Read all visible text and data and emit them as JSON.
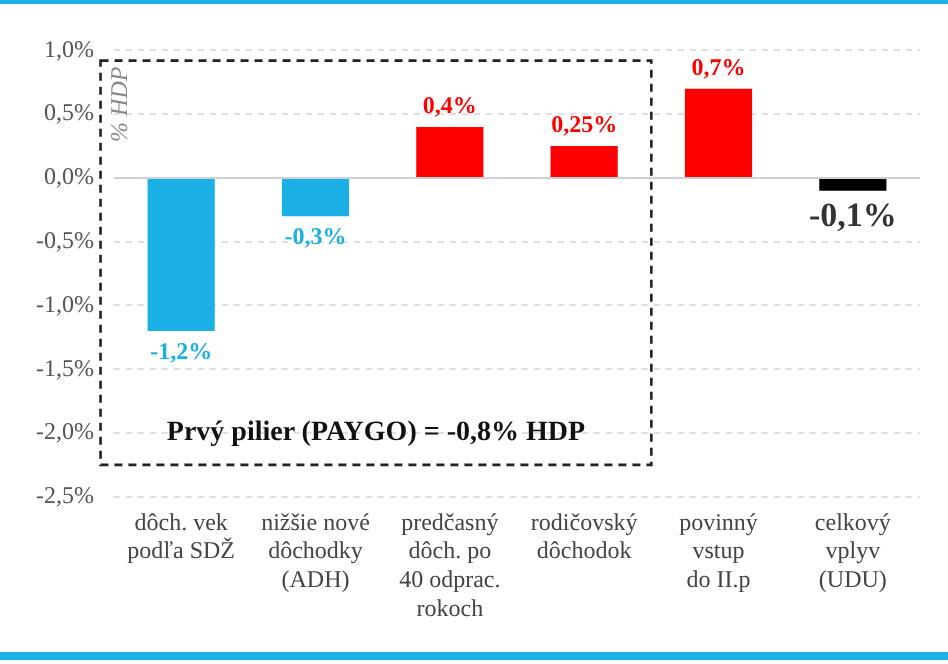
{
  "chart_data": {
    "type": "bar",
    "ylabel": "% HDP",
    "categories": [
      "dôch. vek\npodľa SDŽ",
      "nižšie nové\ndôchodky\n(ADH)",
      "predčasný\ndôch. po\n40 odprac.\nrokoch",
      "rodičovský\ndôchodok",
      "povinný\nvstup\ndo II.p",
      "celkový\nvplyv\n(UDU)"
    ],
    "values": [
      -1.2,
      -0.3,
      0.4,
      0.25,
      0.7,
      -0.1
    ],
    "colors": [
      "#1ab0e6",
      "#1ab0e6",
      "#ff0000",
      "#ff0000",
      "#ff0000",
      "#000000"
    ],
    "value_labels": [
      "-1,2%",
      "-0,3%",
      "0,4%",
      "0,25%",
      "0,7%",
      "-0,1%"
    ],
    "ylim": [
      -2.5,
      1.0
    ],
    "yticks": [
      {
        "value": 1.0,
        "label": "1,0%"
      },
      {
        "value": 0.5,
        "label": "0,5%"
      },
      {
        "value": 0,
        "label": "0,0%"
      },
      {
        "value": -0.5,
        "label": "-0,5%"
      },
      {
        "value": -1.0,
        "label": "-1,0%"
      },
      {
        "value": -1.5,
        "label": "-1,5%"
      },
      {
        "value": -2.0,
        "label": "-2,0%"
      },
      {
        "value": -2.5,
        "label": "-2,5%"
      }
    ],
    "grid": "y",
    "annotations": [
      "Prvý pilier (PAYGO) = -0,8% HDP"
    ]
  }
}
